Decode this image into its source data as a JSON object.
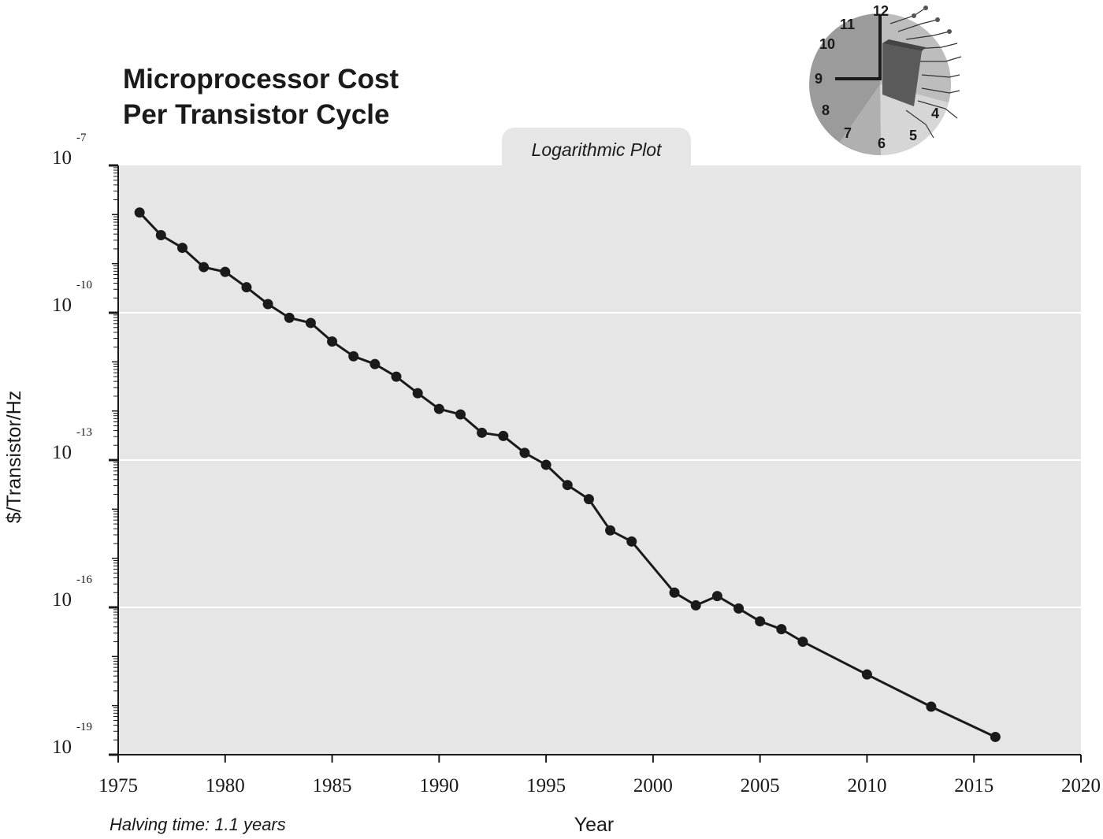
{
  "chart_data": {
    "type": "line",
    "title": [
      "Microprocessor Cost",
      "Per Transistor Cycle"
    ],
    "subtitle": "Logarithmic Plot",
    "xlabel": "Year",
    "ylabel": "$/Transistor/Hz",
    "xlim": [
      1975,
      2020
    ],
    "ylim": [
      1e-19,
      1e-07
    ],
    "yscale": "log",
    "grid": true,
    "xticks": [
      1975,
      1980,
      1985,
      1990,
      1995,
      2000,
      2005,
      2010,
      2015,
      2020
    ],
    "yticks": [
      {
        "base": "10",
        "exp": "-7",
        "value": 1e-07
      },
      {
        "base": "10",
        "exp": "-10",
        "value": 1e-10
      },
      {
        "base": "10",
        "exp": "-13",
        "value": 1e-13
      },
      {
        "base": "10",
        "exp": "-16",
        "value": 1e-16
      },
      {
        "base": "10",
        "exp": "-19",
        "value": 1e-19
      }
    ],
    "annotation": "Halving time: 1.1 years",
    "series": [
      {
        "x": [
          1976,
          1977,
          1978,
          1979,
          1980,
          1981,
          1982,
          1983,
          1984,
          1985,
          1986,
          1987,
          1988,
          1989,
          1990,
          1991,
          1992,
          1993,
          1994,
          1995,
          1996,
          1997,
          1998,
          1999,
          2001,
          2002,
          2003,
          2004,
          2005,
          2006,
          2007,
          2010,
          2013,
          2016
        ],
        "y": [
          1.1e-08,
          3.8e-09,
          2.1e-09,
          8.5e-10,
          6.8e-10,
          3.3e-10,
          1.5e-10,
          7.9e-11,
          6.2e-11,
          2.6e-11,
          1.3e-11,
          9e-12,
          5e-12,
          2.3e-12,
          1.1e-12,
          8.5e-13,
          3.6e-13,
          3.1e-13,
          1.4e-13,
          8e-14,
          3.1e-14,
          1.6e-14,
          3.7e-15,
          2.2e-15,
          2e-16,
          1.1e-16,
          1.7e-16,
          9.5e-17,
          5.2e-17,
          3.6e-17,
          2e-17,
          4.3e-18,
          9.5e-19,
          2.3e-19
        ]
      }
    ],
    "colors": {
      "plot_background": "#e6e6e6",
      "line": "#1a1a1a",
      "grid": "#ffffff"
    }
  },
  "clock": {
    "numbers": [
      "12",
      "11",
      "10",
      "9",
      "8",
      "7",
      "6",
      "5",
      "4"
    ],
    "icon": "clock-with-chip-icon"
  }
}
